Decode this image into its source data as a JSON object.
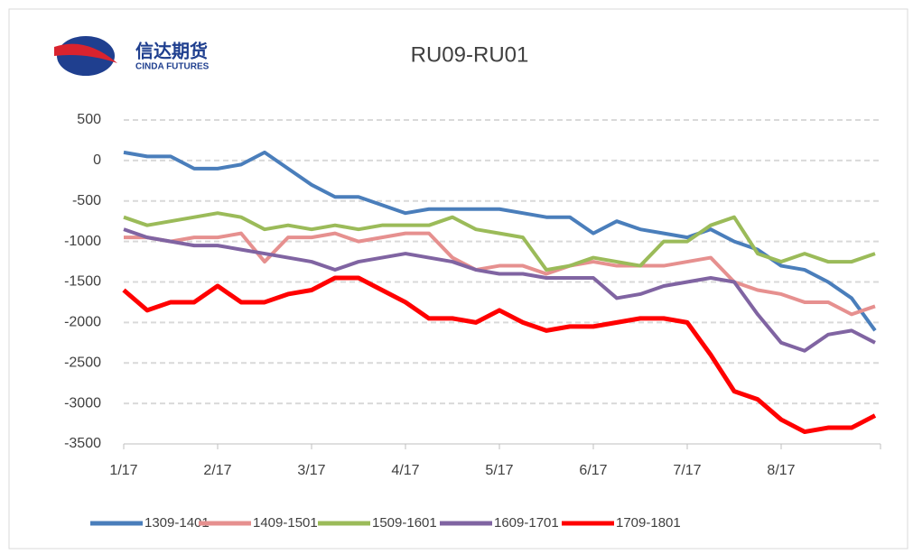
{
  "logo": {
    "name": "信达期货",
    "subtitle": "CINDA FUTURES"
  },
  "chart_data": {
    "type": "line",
    "title": "RU09-RU01",
    "categories": [
      "1/17",
      null,
      null,
      null,
      "2/17",
      null,
      null,
      null,
      "3/17",
      null,
      null,
      null,
      "4/17",
      null,
      null,
      null,
      "5/17",
      null,
      null,
      null,
      "6/17",
      null,
      null,
      null,
      "7/17",
      null,
      null,
      null,
      "8/17",
      null,
      null,
      null,
      null
    ],
    "series": [
      {
        "name": "1309-1401",
        "color": "#4a7ebb",
        "values": [
          100,
          50,
          50,
          -100,
          -100,
          -50,
          100,
          -100,
          -300,
          -450,
          -450,
          -550,
          -650,
          -600,
          -600,
          -600,
          -600,
          -650,
          -700,
          -700,
          -900,
          -750,
          -850,
          -900,
          -950,
          -850,
          -1000,
          -1100,
          -1300,
          -1350,
          -1500,
          -1700,
          -2100
        ]
      },
      {
        "name": "1409-1501",
        "color": "#e6908f",
        "values": [
          -950,
          -950,
          -1000,
          -950,
          -950,
          -900,
          -1250,
          -950,
          -950,
          -900,
          -1000,
          -950,
          -900,
          -900,
          -1200,
          -1350,
          -1300,
          -1300,
          -1400,
          -1300,
          -1250,
          -1300,
          -1300,
          -1300,
          -1250,
          -1200,
          -1500,
          -1600,
          -1650,
          -1750,
          -1750,
          -1900,
          -1800
        ]
      },
      {
        "name": "1509-1601",
        "color": "#9bbb59",
        "values": [
          -700,
          -800,
          -750,
          -700,
          -650,
          -700,
          -850,
          -800,
          -850,
          -800,
          -850,
          -800,
          -800,
          -800,
          -700,
          -850,
          -900,
          -950,
          -1350,
          -1300,
          -1200,
          -1250,
          -1300,
          -1000,
          -1000,
          -800,
          -700,
          -1150,
          -1250,
          -1150,
          -1250,
          -1250,
          -1150
        ]
      },
      {
        "name": "1609-1701",
        "color": "#8064a2",
        "values": [
          -850,
          -950,
          -1000,
          -1050,
          -1050,
          -1100,
          -1150,
          -1200,
          -1250,
          -1350,
          -1250,
          -1200,
          -1150,
          -1200,
          -1250,
          -1350,
          -1400,
          -1400,
          -1450,
          -1450,
          -1450,
          -1700,
          -1650,
          -1550,
          -1500,
          -1450,
          -1500,
          -1900,
          -2250,
          -2350,
          -2150,
          -2100,
          -2250
        ]
      },
      {
        "name": "1709-1801",
        "color": "#ff0000",
        "values": [
          -1600,
          -1850,
          -1750,
          -1750,
          -1550,
          -1750,
          -1750,
          -1650,
          -1600,
          -1450,
          -1450,
          -1600,
          -1750,
          -1950,
          -1950,
          -2000,
          -1850,
          -2000,
          -2100,
          -2050,
          -2050,
          -2000,
          -1950,
          -1950,
          -2000,
          -2400,
          -2850,
          -2950,
          -3200,
          -3350,
          -3300,
          -3300,
          -3150
        ]
      }
    ],
    "ylim": [
      -3500,
      500
    ],
    "yticks": [
      -3500,
      -3000,
      -2500,
      -2000,
      -1500,
      -1000,
      -500,
      0,
      500
    ],
    "grid": true,
    "legend": "bottom"
  }
}
